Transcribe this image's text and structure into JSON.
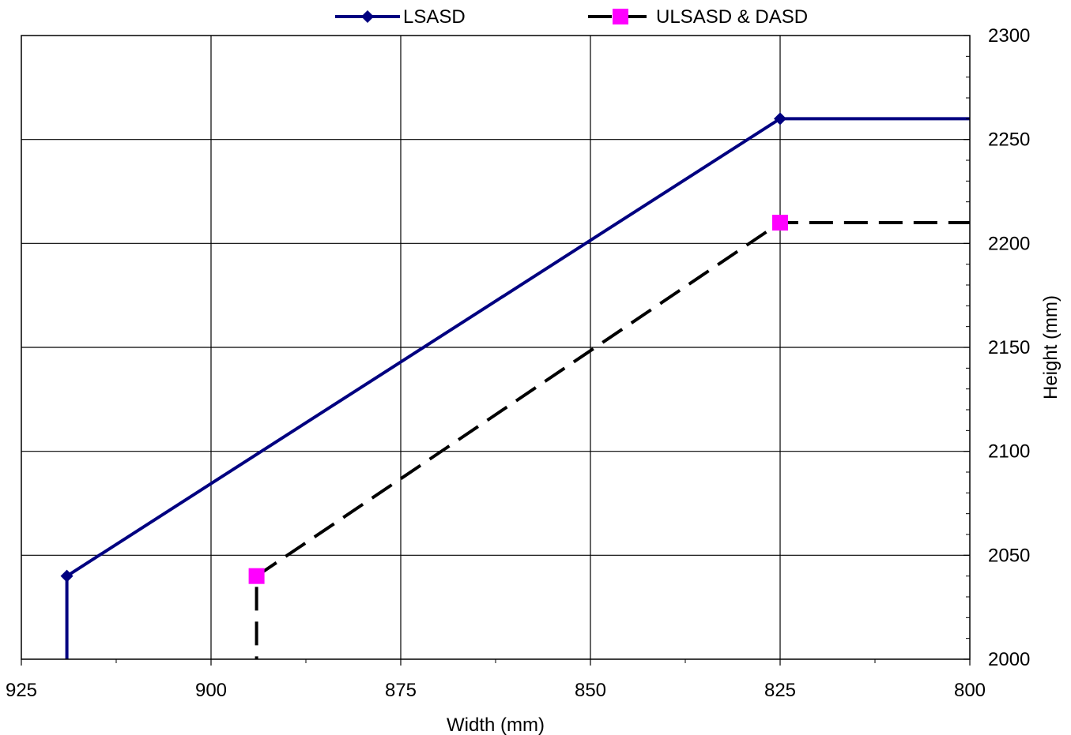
{
  "chart_data": {
    "type": "line",
    "xlabel": "Width (mm)",
    "ylabel": "Height (mm)",
    "xlim": [
      925,
      800
    ],
    "x_reversed": true,
    "ylim": [
      2000,
      2300
    ],
    "x_ticks": [
      925,
      900,
      875,
      850,
      825,
      800
    ],
    "y_ticks": [
      2000,
      2050,
      2100,
      2150,
      2200,
      2250,
      2300
    ],
    "y_axis_position": "right",
    "grid": true,
    "legend_position": "top",
    "series": [
      {
        "name": "LSASD",
        "color": "#000080",
        "marker": "diamond",
        "line_style": "solid",
        "points": [
          [
            919,
            1990
          ],
          [
            919,
            2040
          ],
          [
            825,
            2260
          ],
          [
            800,
            2260
          ]
        ],
        "marked_points": [
          [
            919,
            2040
          ],
          [
            825,
            2260
          ]
        ]
      },
      {
        "name": "ULSASD & DASD",
        "color": "#000000",
        "marker_color": "#ff00ff",
        "marker": "square",
        "line_style": "dashed",
        "points": [
          [
            894,
            1990
          ],
          [
            894,
            2040
          ],
          [
            825,
            2210
          ],
          [
            800,
            2210
          ]
        ],
        "marked_points": [
          [
            894,
            2040
          ],
          [
            825,
            2210
          ]
        ]
      }
    ]
  }
}
